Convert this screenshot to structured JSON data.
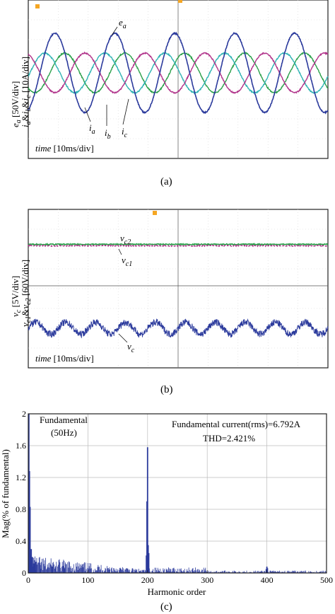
{
  "panels": {
    "a": {
      "caption": "(a)",
      "ylabel_line1": "e",
      "ylabel_line1_sub": "a",
      "ylabel_line1_rest": " [50V/div]",
      "ylabel_line2": "i",
      "ylabel_line2_rest": " [10A/div]",
      "time_label_italic": "time",
      "time_label_rest": " [10ms/div]",
      "labels": {
        "ea": "e",
        "ea_sub": "a",
        "ia": "i",
        "ia_sub": "a",
        "ib": "i",
        "ib_sub": "b",
        "ic": "i",
        "ic_sub": "c"
      }
    },
    "b": {
      "caption": "(b)",
      "ylabel_line1": "v",
      "ylabel_line1_rest": " [5V/div]",
      "ylabel_line2": "v",
      "ylabel_line2_rest": " [60V/div]",
      "time_label_italic": "time",
      "time_label_rest": " [10ms/div]",
      "labels": {
        "vc2": "v",
        "vc2_sub": "c2",
        "vc1": "v",
        "vc1_sub": "c1",
        "vc": "v",
        "vc_sub": "c"
      }
    },
    "c": {
      "caption": "(c)",
      "ylabel": "Mag(% of fundamental)",
      "xlabel": "Harmonic order",
      "annot_fund_1": "Fundamental",
      "annot_fund_2": "(50Hz)",
      "annot_info_1": "Fundamental current(rms)=6.792A",
      "annot_info_2": "THD=2.421%"
    }
  },
  "colors": {
    "blue": "#2b3a9c",
    "green": "#2aa04a",
    "cyan": "#2fb3b3",
    "magenta": "#b0338a",
    "frame": "#222222",
    "grid": "#bbbbbb"
  },
  "chart_data": [
    {
      "type": "line",
      "title": "",
      "xlabel": "time [10ms/div]",
      "ylabel": "ea [50V/div], ia&ib&ic [10A/div]",
      "x_range_ms": [
        0,
        100
      ],
      "series": [
        {
          "name": "e_a",
          "amplitude_div": 2.0,
          "offset_div": 0.0,
          "frequency_hz": 50,
          "phase_deg": 0
        },
        {
          "name": "i_a",
          "amplitude_div": 1.0,
          "offset_div": 0.0,
          "frequency_hz": 50,
          "phase_deg": 180
        },
        {
          "name": "i_b",
          "amplitude_div": 1.0,
          "offset_div": 0.0,
          "frequency_hz": 50,
          "phase_deg": 60
        },
        {
          "name": "i_c",
          "amplitude_div": 1.0,
          "offset_div": 0.0,
          "frequency_hz": 50,
          "phase_deg": -60
        }
      ]
    },
    {
      "type": "line",
      "title": "",
      "xlabel": "time [10ms/div]",
      "ylabel": "vc [5V/div], vc1&vc2 [60V/div]",
      "x_range_ms": [
        0,
        100
      ],
      "series": [
        {
          "name": "v_c2",
          "amplitude_div": 0.0,
          "offset_div": 2.2
        },
        {
          "name": "v_c1",
          "amplitude_div": 0.0,
          "offset_div": 2.2
        },
        {
          "name": "v_c",
          "amplitude_div": 0.3,
          "offset_div": -2.0,
          "frequency_hz": 100
        }
      ]
    },
    {
      "type": "bar",
      "title": "",
      "xlabel": "Harmonic order",
      "ylabel": "Mag(% of fundamental)",
      "xlim": [
        0,
        500
      ],
      "ylim": [
        0,
        2
      ],
      "xticks": [
        0,
        100,
        200,
        300,
        400,
        500
      ],
      "yticks": [
        0,
        0.4,
        0.8,
        1.2,
        1.6,
        2
      ],
      "ytick_labels": [
        "0",
        "0.4",
        "0.8",
        "1.2",
        "1.6",
        "2"
      ],
      "bars": [
        {
          "x": 1,
          "y": 2.0
        },
        {
          "x": 2,
          "y": 1.28
        },
        {
          "x": 3,
          "y": 0.83
        },
        {
          "x": 4,
          "y": 0.22
        },
        {
          "x": 5,
          "y": 0.3
        },
        {
          "x": 7,
          "y": 0.2
        },
        {
          "x": 9,
          "y": 0.12
        },
        {
          "x": 11,
          "y": 0.16
        },
        {
          "x": 13,
          "y": 0.14
        },
        {
          "x": 20,
          "y": 0.1
        },
        {
          "x": 40,
          "y": 0.08
        },
        {
          "x": 60,
          "y": 0.07
        },
        {
          "x": 100,
          "y": 0.06
        },
        {
          "x": 199,
          "y": 0.9
        },
        {
          "x": 200,
          "y": 1.58
        },
        {
          "x": 201,
          "y": 0.35
        },
        {
          "x": 202,
          "y": 0.25
        },
        {
          "x": 198,
          "y": 0.22
        },
        {
          "x": 399,
          "y": 0.05
        },
        {
          "x": 400,
          "y": 0.08
        },
        {
          "x": 401,
          "y": 0.06
        }
      ]
    }
  ]
}
